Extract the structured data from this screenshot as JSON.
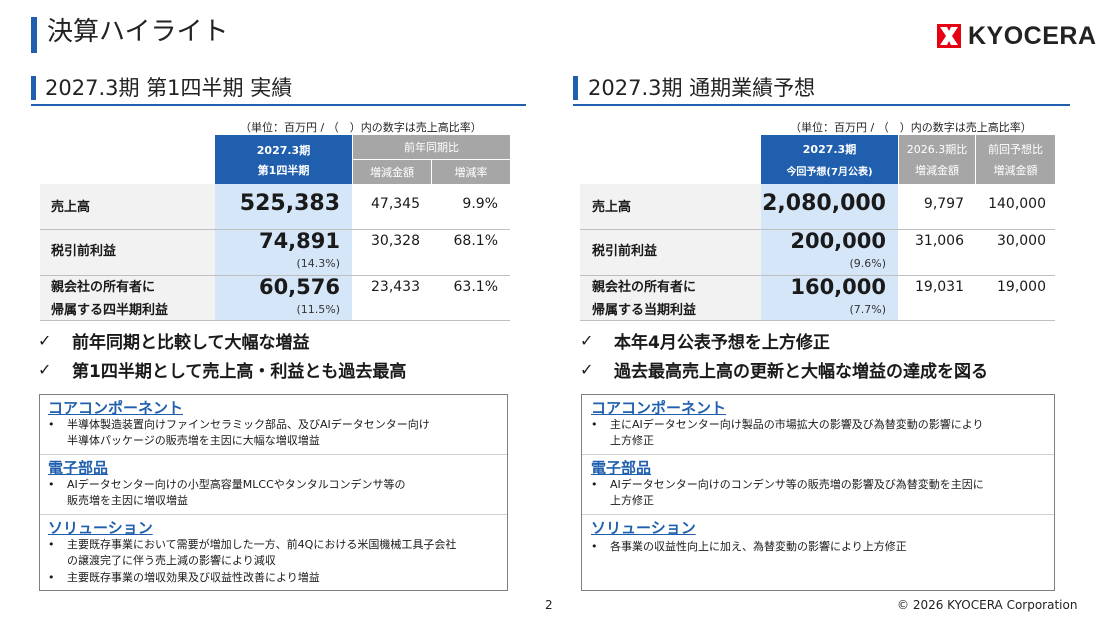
{
  "page": {
    "title": "決算ハイライト"
  },
  "brand": {
    "logo_text": "KYOCERA",
    "accent": "#1f5fae",
    "logo_red": "#e60012"
  },
  "left": {
    "title": "2027.3期 第1四半期 実績",
    "unit_note": "（単位：百万円 / （　）内の数字は売上高比率）",
    "header": {
      "main_line1": "2027.3期",
      "main_line2": "第1四半期",
      "group": "前年同期比",
      "col1": "増減金額",
      "col2": "増減率"
    },
    "rows": [
      {
        "label_line1": "売上高",
        "label_line2": "",
        "value": "525,383",
        "ratio": "",
        "diff": "47,345",
        "rate": "9.9%"
      },
      {
        "label_line1": "税引前利益",
        "label_line2": "",
        "value": "74,891",
        "ratio": "(14.3%)",
        "diff": "30,328",
        "rate": "68.1%"
      },
      {
        "label_line1": "親会社の所有者に",
        "label_line2": "帰属する四半期利益",
        "value": "60,576",
        "ratio": "(11.5%)",
        "diff": "23,433",
        "rate": "63.1%"
      }
    ],
    "checks": [
      "前年同期と比較して大幅な増益",
      "第1四半期として売上高・利益とも過去最高"
    ],
    "segments": [
      {
        "title": "コアコンポーネント",
        "bullets": [
          [
            "半導体製造装置向けファインセラミック部品、及びAIデータセンター向け",
            "半導体パッケージの販売増を主因に大幅な増収増益"
          ]
        ]
      },
      {
        "title": "電子部品",
        "bullets": [
          [
            "AIデータセンター向けの小型高容量MLCCやタンタルコンデンサ等の",
            "販売増を主因に増収増益"
          ]
        ]
      },
      {
        "title": "ソリューション",
        "bullets": [
          [
            "主要既存事業において需要が増加した一方、前4Qにおける米国機械工具子会社",
            "の譲渡完了に伴う売上減の影響により減収"
          ],
          [
            "主要既存事業の増収効果及び収益性改善により増益"
          ]
        ]
      }
    ]
  },
  "right": {
    "title": "2027.3期 通期業績予想",
    "unit_note": "（単位：百万円 / （　）内の数字は売上高比率）",
    "header": {
      "main_line1": "2027.3期",
      "main_line2": "今回予想(7月公表)",
      "col1_line1": "2026.3期比",
      "col1_line2": "増減金額",
      "col2_line1": "前回予想比",
      "col2_line2": "増減金額"
    },
    "rows": [
      {
        "label_line1": "売上高",
        "label_line2": "",
        "value": "2,080,000",
        "ratio": "",
        "diff1": "9,797",
        "diff2": "140,000"
      },
      {
        "label_line1": "税引前利益",
        "label_line2": "",
        "value": "200,000",
        "ratio": "(9.6%)",
        "diff1": "31,006",
        "diff2": "30,000"
      },
      {
        "label_line1": "親会社の所有者に",
        "label_line2": "帰属する当期利益",
        "value": "160,000",
        "ratio": "(7.7%)",
        "diff1": "19,031",
        "diff2": "19,000"
      }
    ],
    "checks": [
      "本年4月公表予想を上方修正",
      "過去最高売上高の更新と大幅な増益の達成を図る"
    ],
    "segments": [
      {
        "title": "コアコンポーネント",
        "bullets": [
          [
            "主にAIデータセンター向け製品の市場拡大の影響及び為替変動の影響により",
            "上方修正"
          ]
        ]
      },
      {
        "title": "電子部品",
        "bullets": [
          [
            "AIデータセンター向けのコンデンサ等の販売増の影響及び為替変動を主因に",
            "上方修正"
          ]
        ]
      },
      {
        "title": "ソリューション",
        "bullets": [
          [
            "各事業の収益性向上に加え、為替変動の影響により上方修正"
          ]
        ]
      }
    ]
  },
  "footer": {
    "page_number": "2",
    "copyright": "© 2026 KYOCERA Corporation"
  }
}
